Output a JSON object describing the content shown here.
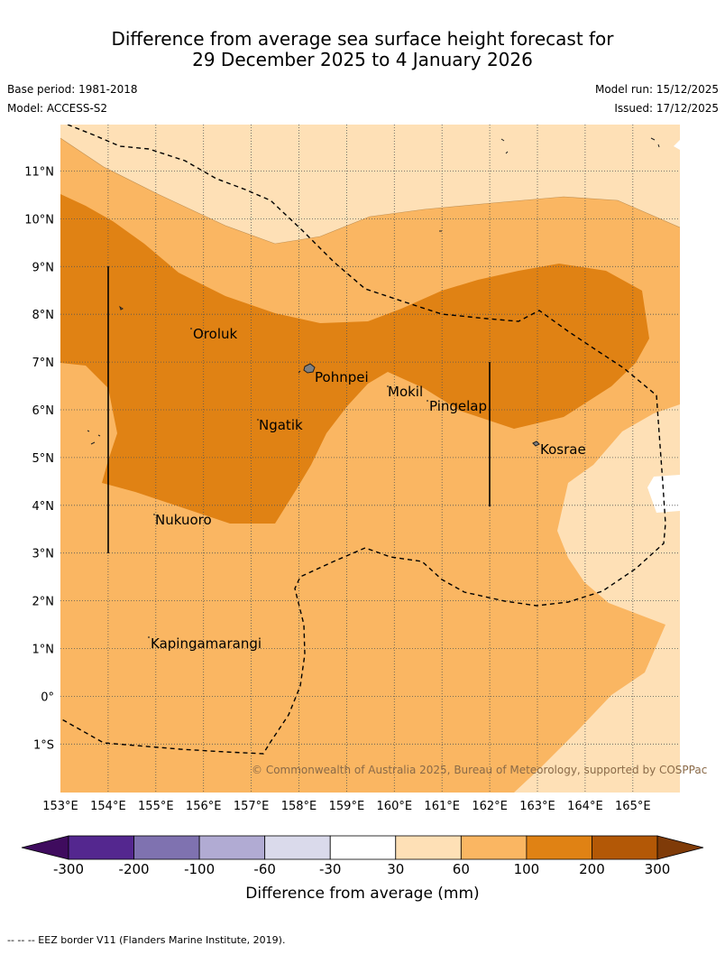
{
  "title": {
    "line1": "Difference from average sea surface height forecast for",
    "line2": "29 December 2025 to 4 January 2026"
  },
  "meta": {
    "base_period": "Base period: 1981-2018",
    "model": "Model: ACCESS-S2",
    "model_run": "Model run: 15/12/2025",
    "issued": "Issued: 17/12/2025"
  },
  "map": {
    "lon_labels": [
      "153°E",
      "154°E",
      "155°E",
      "156°E",
      "157°E",
      "158°E",
      "159°E",
      "160°E",
      "161°E",
      "162°E",
      "163°E",
      "164°E",
      "165°E"
    ],
    "lat_labels": [
      "11°N",
      "10°N",
      "9°N",
      "8°N",
      "7°N",
      "6°N",
      "5°N",
      "4°N",
      "3°N",
      "2°N",
      "1°N",
      "0°",
      "1°S"
    ],
    "places": [
      "Oroluk",
      "Pohnpei",
      "Mokil",
      "Pingelap",
      "Ngatik",
      "Kosrae",
      "Nukuoro",
      "Kapingamarangi"
    ],
    "copyright": "© Commonwealth of Australia 2025, Bureau of Meteorology, supported by COSPPac"
  },
  "colorbar": {
    "ticks": [
      "-300",
      "-200",
      "-100",
      "-60",
      "-30",
      "30",
      "60",
      "100",
      "200",
      "300"
    ],
    "label": "Difference from average (mm)",
    "colors": [
      "#3f0b5e",
      "#54278f",
      "#7f72b0",
      "#b1abd3",
      "#dadaeb",
      "#ffffff",
      "#fee0b6",
      "#fab662",
      "#e08214",
      "#b35806",
      "#7f3b08"
    ]
  },
  "footer": {
    "legend": "-- -- -- EEZ border V11 (Flanders Marine Institute, 2019)."
  }
}
